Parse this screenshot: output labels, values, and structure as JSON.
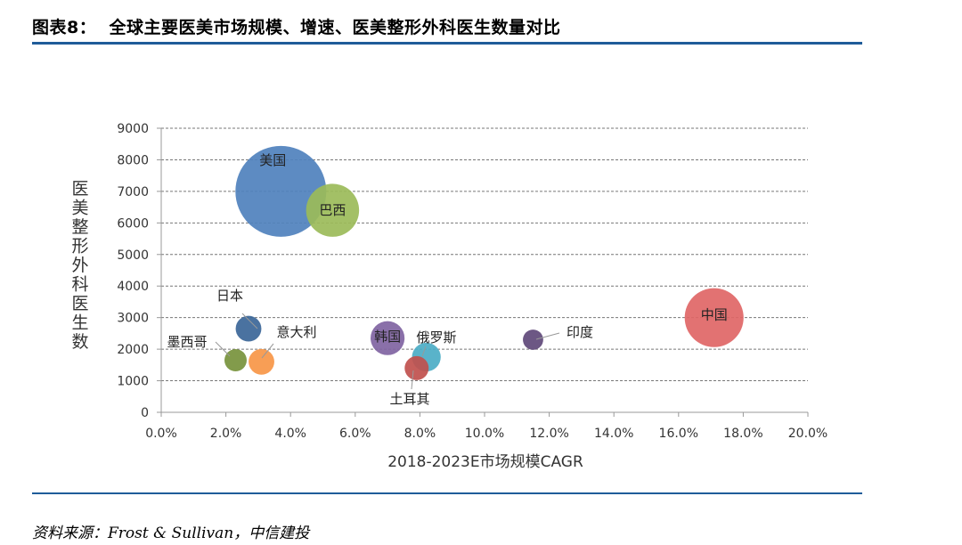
{
  "header": {
    "figure_label": "图表8：",
    "title": "全球主要医美市场规模、增速、医美整形外科医生数量对比"
  },
  "source": "资料来源：Frost & Sullivan，中信建投",
  "chart_data": {
    "type": "bubble",
    "title": "",
    "xlabel": "2018-2023E市场规模CAGR",
    "ylabel": "医美整形外科医生数",
    "xlim": [
      0,
      0.2
    ],
    "ylim": [
      0,
      9000
    ],
    "x_ticks": [
      "0.0%",
      "2.0%",
      "4.0%",
      "6.0%",
      "8.0%",
      "10.0%",
      "12.0%",
      "14.0%",
      "16.0%",
      "18.0%",
      "20.0%"
    ],
    "y_ticks": [
      "0",
      "1000",
      "2000",
      "3000",
      "4000",
      "5000",
      "6000",
      "7000",
      "8000",
      "9000"
    ],
    "grid": "horizontal-dashed",
    "points": [
      {
        "name": "美国",
        "x": 0.037,
        "y": 7000,
        "size": 100,
        "color": "#4f81bd"
      },
      {
        "name": "巴西",
        "x": 0.053,
        "y": 6400,
        "size": 34,
        "color": "#9bbb59"
      },
      {
        "name": "中国",
        "x": 0.171,
        "y": 3000,
        "size": 42,
        "color": "#e06666"
      },
      {
        "name": "日本",
        "x": 0.027,
        "y": 2650,
        "size": 8,
        "color": "#3b6698"
      },
      {
        "name": "韩国",
        "x": 0.07,
        "y": 2350,
        "size": 14,
        "color": "#8064a2"
      },
      {
        "name": "俄罗斯",
        "x": 0.082,
        "y": 1750,
        "size": 10,
        "color": "#4bacc6"
      },
      {
        "name": "印度",
        "x": 0.115,
        "y": 2300,
        "size": 5,
        "color": "#5f497a"
      },
      {
        "name": "墨西哥",
        "x": 0.023,
        "y": 1650,
        "size": 6,
        "color": "#77933c"
      },
      {
        "name": "意大利",
        "x": 0.031,
        "y": 1600,
        "size": 8,
        "color": "#f79646"
      },
      {
        "name": "土耳其",
        "x": 0.079,
        "y": 1400,
        "size": 7,
        "color": "#c0504d"
      }
    ]
  }
}
